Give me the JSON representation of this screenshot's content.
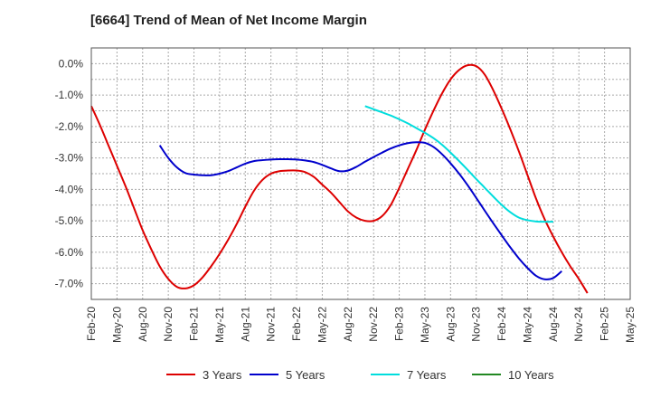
{
  "title": "[6664]  Trend of Mean of Net Income Margin",
  "chart_data": {
    "type": "line",
    "title": "[6664]  Trend of Mean of Net Income Margin",
    "xlabel": "",
    "ylabel": "",
    "x_ticks": [
      "Feb-20",
      "May-20",
      "Aug-20",
      "Nov-20",
      "Feb-21",
      "May-21",
      "Aug-21",
      "Nov-21",
      "Feb-22",
      "May-22",
      "Aug-22",
      "Nov-22",
      "Feb-23",
      "May-23",
      "Aug-23",
      "Nov-23",
      "Feb-24",
      "May-24",
      "Aug-24",
      "Nov-24",
      "Feb-25",
      "May-25"
    ],
    "y_ticks": [
      "0.0%",
      "-1.0%",
      "-2.0%",
      "-3.0%",
      "-4.0%",
      "-5.0%",
      "-6.0%",
      "-7.0%"
    ],
    "ylim": [
      -7.5,
      0.5
    ],
    "grid": true,
    "legend_position": "bottom",
    "series": [
      {
        "name": "3 Years",
        "color": "#dd0000",
        "points": [
          [
            "Feb-20",
            -1.35
          ],
          [
            "Mar-20",
            -1.95
          ],
          [
            "Apr-20",
            -2.6
          ],
          [
            "May-20",
            -3.25
          ],
          [
            "Jun-20",
            -3.9
          ],
          [
            "Jul-20",
            -4.6
          ],
          [
            "Aug-20",
            -5.3
          ],
          [
            "Sep-20",
            -5.9
          ],
          [
            "Oct-20",
            -6.45
          ],
          [
            "Nov-20",
            -6.85
          ],
          [
            "Dec-20",
            -7.1
          ],
          [
            "Jan-21",
            -7.15
          ],
          [
            "Feb-21",
            -7.05
          ],
          [
            "Mar-21",
            -6.8
          ],
          [
            "Apr-21",
            -6.45
          ],
          [
            "May-21",
            -6.05
          ],
          [
            "Jun-21",
            -5.6
          ],
          [
            "Jul-21",
            -5.1
          ],
          [
            "Aug-21",
            -4.55
          ],
          [
            "Sep-21",
            -4.05
          ],
          [
            "Oct-21",
            -3.7
          ],
          [
            "Nov-21",
            -3.5
          ],
          [
            "Dec-21",
            -3.42
          ],
          [
            "Jan-22",
            -3.4
          ],
          [
            "Feb-22",
            -3.4
          ],
          [
            "Mar-22",
            -3.45
          ],
          [
            "Apr-22",
            -3.6
          ],
          [
            "May-22",
            -3.85
          ],
          [
            "Jun-22",
            -4.1
          ],
          [
            "Jul-22",
            -4.4
          ],
          [
            "Aug-22",
            -4.7
          ],
          [
            "Sep-22",
            -4.9
          ],
          [
            "Oct-22",
            -5.0
          ],
          [
            "Nov-22",
            -5.0
          ],
          [
            "Dec-22",
            -4.85
          ],
          [
            "Jan-23",
            -4.5
          ],
          [
            "Feb-23",
            -3.95
          ],
          [
            "Mar-23",
            -3.35
          ],
          [
            "Apr-23",
            -2.75
          ],
          [
            "May-23",
            -2.1
          ],
          [
            "Jun-23",
            -1.5
          ],
          [
            "Jul-23",
            -0.95
          ],
          [
            "Aug-23",
            -0.5
          ],
          [
            "Sep-23",
            -0.2
          ],
          [
            "Oct-23",
            -0.05
          ],
          [
            "Nov-23",
            -0.08
          ],
          [
            "Dec-23",
            -0.35
          ],
          [
            "Jan-24",
            -0.85
          ],
          [
            "Feb-24",
            -1.45
          ],
          [
            "Mar-24",
            -2.1
          ],
          [
            "Apr-24",
            -2.8
          ],
          [
            "May-24",
            -3.55
          ],
          [
            "Jun-24",
            -4.3
          ],
          [
            "Jul-24",
            -4.95
          ],
          [
            "Aug-24",
            -5.5
          ],
          [
            "Sep-24",
            -6.0
          ],
          [
            "Oct-24",
            -6.45
          ],
          [
            "Nov-24",
            -6.85
          ],
          [
            "Dec-24",
            -7.3
          ]
        ]
      },
      {
        "name": "5 Years",
        "color": "#0000cc",
        "points": [
          [
            "Oct-20",
            -2.6
          ],
          [
            "Nov-20",
            -3.0
          ],
          [
            "Dec-20",
            -3.3
          ],
          [
            "Jan-21",
            -3.48
          ],
          [
            "Feb-21",
            -3.53
          ],
          [
            "Mar-21",
            -3.55
          ],
          [
            "Apr-21",
            -3.55
          ],
          [
            "May-21",
            -3.5
          ],
          [
            "Jun-21",
            -3.42
          ],
          [
            "Jul-21",
            -3.3
          ],
          [
            "Aug-21",
            -3.18
          ],
          [
            "Sep-21",
            -3.1
          ],
          [
            "Oct-21",
            -3.07
          ],
          [
            "Nov-21",
            -3.05
          ],
          [
            "Dec-21",
            -3.04
          ],
          [
            "Jan-22",
            -3.04
          ],
          [
            "Feb-22",
            -3.05
          ],
          [
            "Mar-22",
            -3.08
          ],
          [
            "Apr-22",
            -3.13
          ],
          [
            "May-22",
            -3.22
          ],
          [
            "Jun-22",
            -3.33
          ],
          [
            "Jul-22",
            -3.42
          ],
          [
            "Aug-22",
            -3.4
          ],
          [
            "Sep-22",
            -3.28
          ],
          [
            "Oct-22",
            -3.12
          ],
          [
            "Nov-22",
            -2.97
          ],
          [
            "Dec-22",
            -2.83
          ],
          [
            "Jan-23",
            -2.7
          ],
          [
            "Feb-23",
            -2.6
          ],
          [
            "Mar-23",
            -2.53
          ],
          [
            "Apr-23",
            -2.5
          ],
          [
            "May-23",
            -2.52
          ],
          [
            "Jun-23",
            -2.65
          ],
          [
            "Jul-23",
            -2.88
          ],
          [
            "Aug-23",
            -3.17
          ],
          [
            "Sep-23",
            -3.5
          ],
          [
            "Oct-23",
            -3.87
          ],
          [
            "Nov-23",
            -4.27
          ],
          [
            "Dec-23",
            -4.68
          ],
          [
            "Jan-24",
            -5.08
          ],
          [
            "Feb-24",
            -5.47
          ],
          [
            "Mar-24",
            -5.85
          ],
          [
            "Apr-24",
            -6.2
          ],
          [
            "May-24",
            -6.5
          ],
          [
            "Jun-24",
            -6.75
          ],
          [
            "Jul-24",
            -6.86
          ],
          [
            "Aug-24",
            -6.82
          ],
          [
            "Sep-24",
            -6.6
          ]
        ]
      },
      {
        "name": "7 Years",
        "color": "#00dddd",
        "points": [
          [
            "Oct-22",
            -1.35
          ],
          [
            "Nov-22",
            -1.45
          ],
          [
            "Dec-22",
            -1.55
          ],
          [
            "Jan-23",
            -1.65
          ],
          [
            "Feb-23",
            -1.77
          ],
          [
            "Mar-23",
            -1.9
          ],
          [
            "Apr-23",
            -2.05
          ],
          [
            "May-23",
            -2.2
          ],
          [
            "Jun-23",
            -2.37
          ],
          [
            "Jul-23",
            -2.58
          ],
          [
            "Aug-23",
            -2.83
          ],
          [
            "Sep-23",
            -3.1
          ],
          [
            "Oct-23",
            -3.38
          ],
          [
            "Nov-23",
            -3.67
          ],
          [
            "Dec-23",
            -3.95
          ],
          [
            "Jan-24",
            -4.23
          ],
          [
            "Feb-24",
            -4.5
          ],
          [
            "Mar-24",
            -4.73
          ],
          [
            "Apr-24",
            -4.9
          ],
          [
            "May-24",
            -4.98
          ],
          [
            "Jun-24",
            -5.02
          ],
          [
            "Jul-24",
            -5.03
          ],
          [
            "Aug-24",
            -5.03
          ]
        ]
      },
      {
        "name": "10 Years",
        "color": "#228822",
        "points": []
      }
    ]
  }
}
